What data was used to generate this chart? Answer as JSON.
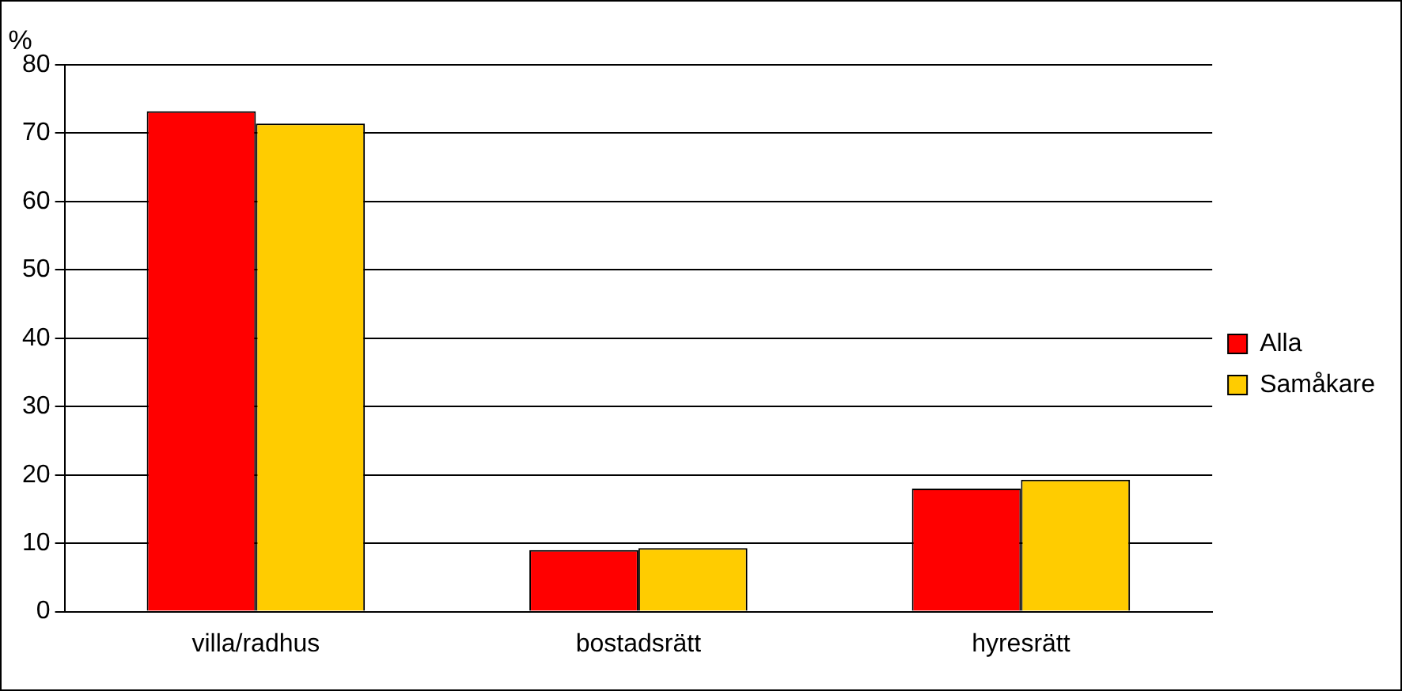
{
  "chart_data": {
    "type": "bar",
    "ylabel": "%",
    "categories": [
      "villa/radhus",
      "bostadsrätt",
      "hyresrätt"
    ],
    "series": [
      {
        "name": "Alla",
        "color": "#ff0000",
        "values": [
          73.2,
          9.0,
          18.0
        ]
      },
      {
        "name": "Samåkare",
        "color": "#ffcc00",
        "values": [
          71.4,
          9.3,
          19.3
        ]
      }
    ],
    "ylim": [
      0,
      80
    ],
    "yticks": [
      0,
      10,
      20,
      30,
      40,
      50,
      60,
      70,
      80
    ],
    "grid": "y",
    "legend": "right"
  }
}
